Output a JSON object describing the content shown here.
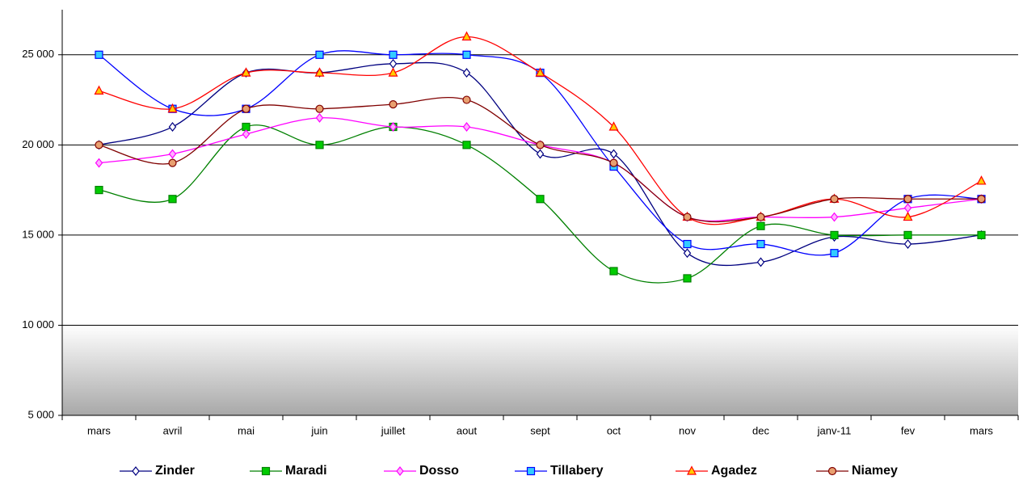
{
  "chart_data": {
    "type": "line",
    "categories": [
      "mars",
      "avril",
      "mai",
      "juin",
      "juillet",
      "aout",
      "sept",
      "oct",
      "nov",
      "dec",
      "janv-11",
      "fev",
      "mars"
    ],
    "ylim": [
      5000,
      27500
    ],
    "yticks": [
      {
        "value": 5000,
        "label": "5 000"
      },
      {
        "value": 10000,
        "label": "10 000"
      },
      {
        "value": 15000,
        "label": "15 000"
      },
      {
        "value": 20000,
        "label": "20 000"
      },
      {
        "value": 25000,
        "label": "25 000"
      }
    ],
    "grid": true,
    "smooth": true,
    "legend": "bottom",
    "series": [
      {
        "name": "Zinder",
        "color": "#000080",
        "marker": "diamond",
        "marker_fill": "#ffffff",
        "values": [
          20000,
          21000,
          24000,
          24000,
          24500,
          24000,
          19500,
          19500,
          14000,
          13500,
          14900,
          14500,
          15000
        ]
      },
      {
        "name": "Maradi",
        "color": "#008000",
        "marker": "square",
        "marker_fill": "#00cc00",
        "values": [
          17500,
          17000,
          21000,
          20000,
          21000,
          20000,
          17000,
          13000,
          12600,
          15500,
          15000,
          15000,
          15000
        ]
      },
      {
        "name": "Dosso",
        "color": "#ff00ff",
        "marker": "diamond",
        "marker_fill": "#ffb0ff",
        "values": [
          19000,
          19500,
          20600,
          21500,
          21000,
          21000,
          20000,
          19000,
          16000,
          16000,
          16000,
          16500,
          17000
        ]
      },
      {
        "name": "Tillabery",
        "color": "#0000ff",
        "marker": "square",
        "marker_fill": "#33ccff",
        "values": [
          25000,
          22000,
          22000,
          25000,
          25000,
          25000,
          24000,
          18800,
          14500,
          14500,
          14000,
          17000,
          17000
        ]
      },
      {
        "name": "Agadez",
        "color": "#ff0000",
        "marker": "triangle",
        "marker_fill": "#ffcc00",
        "values": [
          23000,
          22000,
          24000,
          24000,
          24000,
          26000,
          24000,
          21000,
          16000,
          16000,
          17000,
          16000,
          18000
        ]
      },
      {
        "name": "Niamey",
        "color": "#800000",
        "marker": "circle",
        "marker_fill": "#e8a070",
        "values": [
          20000,
          19000,
          22000,
          22000,
          22250,
          22500,
          20000,
          19000,
          16000,
          16000,
          17000,
          17000,
          17000
        ]
      }
    ]
  }
}
